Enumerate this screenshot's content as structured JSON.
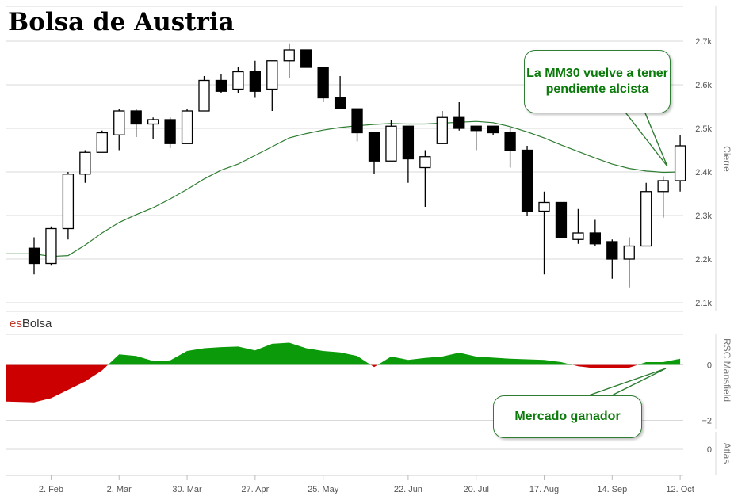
{
  "title": "Bolsa de Austria",
  "brand": {
    "part1": "es",
    "part2": "Bolsa"
  },
  "annotations": {
    "ma_note": "La MM30 vuelve a tener pendiente alcista",
    "market_note": "Mercado ganador"
  },
  "colors": {
    "up_fill": "#ffffff",
    "down_fill": "#000000",
    "ma_line": "#2e7d32",
    "rsc_positive": "#0a9a0a",
    "rsc_negative": "#cc0000",
    "callout_text": "#0a7a0a"
  },
  "chart_data": [
    {
      "type": "candlestick",
      "ylabel": "Cierre",
      "ylim": [
        2080,
        2780
      ],
      "y_ticks": [
        {
          "value": 2100,
          "label": "2.1k"
        },
        {
          "value": 2200,
          "label": "2.2k"
        },
        {
          "value": 2300,
          "label": "2.3k"
        },
        {
          "value": 2400,
          "label": "2.4k"
        },
        {
          "value": 2500,
          "label": "2.5k"
        },
        {
          "value": 2600,
          "label": "2.6k"
        },
        {
          "value": 2700,
          "label": "2.7k"
        }
      ],
      "x_ticks": [
        {
          "index": 1,
          "label": "2. Feb"
        },
        {
          "index": 5,
          "label": "2. Mar"
        },
        {
          "index": 9,
          "label": "30. Mar"
        },
        {
          "index": 13,
          "label": "27. Apr"
        },
        {
          "index": 17,
          "label": "25. May"
        },
        {
          "index": 22,
          "label": "22. Jun"
        },
        {
          "index": 26,
          "label": "20. Jul"
        },
        {
          "index": 30,
          "label": "17. Aug"
        },
        {
          "index": 34,
          "label": "14. Sep"
        },
        {
          "index": 38,
          "label": "12. Oct"
        }
      ],
      "candles": [
        {
          "o": 2225,
          "h": 2250,
          "l": 2165,
          "c": 2190
        },
        {
          "o": 2190,
          "h": 2275,
          "l": 2185,
          "c": 2270
        },
        {
          "o": 2270,
          "h": 2400,
          "l": 2245,
          "c": 2395
        },
        {
          "o": 2395,
          "h": 2450,
          "l": 2375,
          "c": 2445
        },
        {
          "o": 2445,
          "h": 2495,
          "l": 2445,
          "c": 2490
        },
        {
          "o": 2485,
          "h": 2545,
          "l": 2450,
          "c": 2540
        },
        {
          "o": 2540,
          "h": 2545,
          "l": 2480,
          "c": 2510
        },
        {
          "o": 2510,
          "h": 2525,
          "l": 2475,
          "c": 2520
        },
        {
          "o": 2520,
          "h": 2525,
          "l": 2455,
          "c": 2465
        },
        {
          "o": 2465,
          "h": 2545,
          "l": 2465,
          "c": 2540
        },
        {
          "o": 2540,
          "h": 2620,
          "l": 2540,
          "c": 2610
        },
        {
          "o": 2610,
          "h": 2625,
          "l": 2580,
          "c": 2585
        },
        {
          "o": 2590,
          "h": 2640,
          "l": 2580,
          "c": 2630
        },
        {
          "o": 2630,
          "h": 2655,
          "l": 2570,
          "c": 2585
        },
        {
          "o": 2590,
          "h": 2650,
          "l": 2540,
          "c": 2655
        },
        {
          "o": 2655,
          "h": 2695,
          "l": 2615,
          "c": 2680
        },
        {
          "o": 2680,
          "h": 2680,
          "l": 2640,
          "c": 2640
        },
        {
          "o": 2640,
          "h": 2640,
          "l": 2560,
          "c": 2570
        },
        {
          "o": 2570,
          "h": 2620,
          "l": 2545,
          "c": 2545
        },
        {
          "o": 2545,
          "h": 2545,
          "l": 2470,
          "c": 2490
        },
        {
          "o": 2490,
          "h": 2490,
          "l": 2395,
          "c": 2425
        },
        {
          "o": 2425,
          "h": 2520,
          "l": 2425,
          "c": 2505
        },
        {
          "o": 2505,
          "h": 2505,
          "l": 2375,
          "c": 2430
        },
        {
          "o": 2410,
          "h": 2450,
          "l": 2320,
          "c": 2435
        },
        {
          "o": 2465,
          "h": 2540,
          "l": 2465,
          "c": 2525
        },
        {
          "o": 2525,
          "h": 2560,
          "l": 2495,
          "c": 2500
        },
        {
          "o": 2505,
          "h": 2505,
          "l": 2450,
          "c": 2495
        },
        {
          "o": 2505,
          "h": 2505,
          "l": 2485,
          "c": 2490
        },
        {
          "o": 2490,
          "h": 2500,
          "l": 2410,
          "c": 2450
        },
        {
          "o": 2450,
          "h": 2460,
          "l": 2300,
          "c": 2310
        },
        {
          "o": 2310,
          "h": 2355,
          "l": 2165,
          "c": 2330
        },
        {
          "o": 2330,
          "h": 2330,
          "l": 2250,
          "c": 2250
        },
        {
          "o": 2245,
          "h": 2315,
          "l": 2235,
          "c": 2260
        },
        {
          "o": 2260,
          "h": 2290,
          "l": 2230,
          "c": 2235
        },
        {
          "o": 2240,
          "h": 2245,
          "l": 2155,
          "c": 2200
        },
        {
          "o": 2200,
          "h": 2250,
          "l": 2135,
          "c": 2230
        },
        {
          "o": 2230,
          "h": 2375,
          "l": 2230,
          "c": 2355
        },
        {
          "o": 2355,
          "h": 2390,
          "l": 2295,
          "c": 2380
        },
        {
          "o": 2380,
          "h": 2485,
          "l": 2355,
          "c": 2460
        }
      ],
      "ma30": [
        2212,
        2206,
        2208,
        2232,
        2260,
        2284,
        2302,
        2318,
        2338,
        2360,
        2384,
        2404,
        2418,
        2438,
        2458,
        2478,
        2488,
        2496,
        2502,
        2506,
        2509,
        2511,
        2510,
        2510,
        2512,
        2514,
        2516,
        2513,
        2504,
        2492,
        2478,
        2462,
        2447,
        2432,
        2418,
        2408,
        2402,
        2399,
        2400
      ],
      "ma_label": "MM30"
    },
    {
      "type": "area",
      "ylabel": "RSC Mansfield",
      "ylim": [
        -2.3,
        1.1
      ],
      "y_ticks": [
        {
          "value": 0,
          "label": "0"
        },
        {
          "value": -2,
          "label": "−2"
        }
      ],
      "values": [
        -1.35,
        -1.2,
        -0.9,
        -0.6,
        -0.2,
        0.38,
        0.32,
        0.14,
        0.16,
        0.5,
        0.6,
        0.64,
        0.66,
        0.52,
        0.76,
        0.8,
        0.6,
        0.5,
        0.45,
        0.32,
        -0.08,
        0.3,
        0.18,
        0.25,
        0.3,
        0.44,
        0.3,
        0.26,
        0.22,
        0.2,
        0.18,
        0.1,
        -0.05,
        -0.12,
        -0.12,
        -0.1,
        0.1,
        0.1,
        0.22
      ]
    },
    {
      "type": "line",
      "ylabel": "Atlas",
      "y_ticks": [
        {
          "value": 0,
          "label": "0"
        }
      ],
      "values": []
    }
  ]
}
